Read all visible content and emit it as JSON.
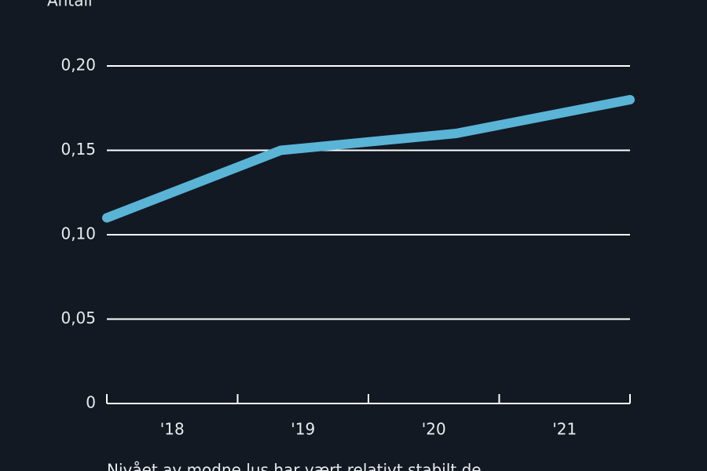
{
  "chart_data": {
    "type": "line",
    "y_label": "Antall",
    "caption": "Nivået av modne lus har vært relativt stabilt de",
    "categories": [
      "'18",
      "'19",
      "'20",
      "'21"
    ],
    "x": [
      2018,
      2019.33,
      2020.67,
      2022
    ],
    "xlim": [
      2018,
      2022
    ],
    "xticks": [
      2018,
      2019,
      2020,
      2021,
      2022
    ],
    "series": [
      {
        "color": "#5ab4d6",
        "values": [
          0.11,
          0.15,
          0.16,
          0.18
        ]
      }
    ],
    "ylim": [
      0,
      0.2
    ],
    "yticks": [
      0,
      {
        "value": 0.05,
        "label": "0,05"
      },
      {
        "value": 0.1,
        "label": "0,10"
      },
      {
        "value": 0.15,
        "label": "0,15"
      },
      {
        "value": 0.2,
        "label": "0,20"
      }
    ],
    "grid": true
  }
}
